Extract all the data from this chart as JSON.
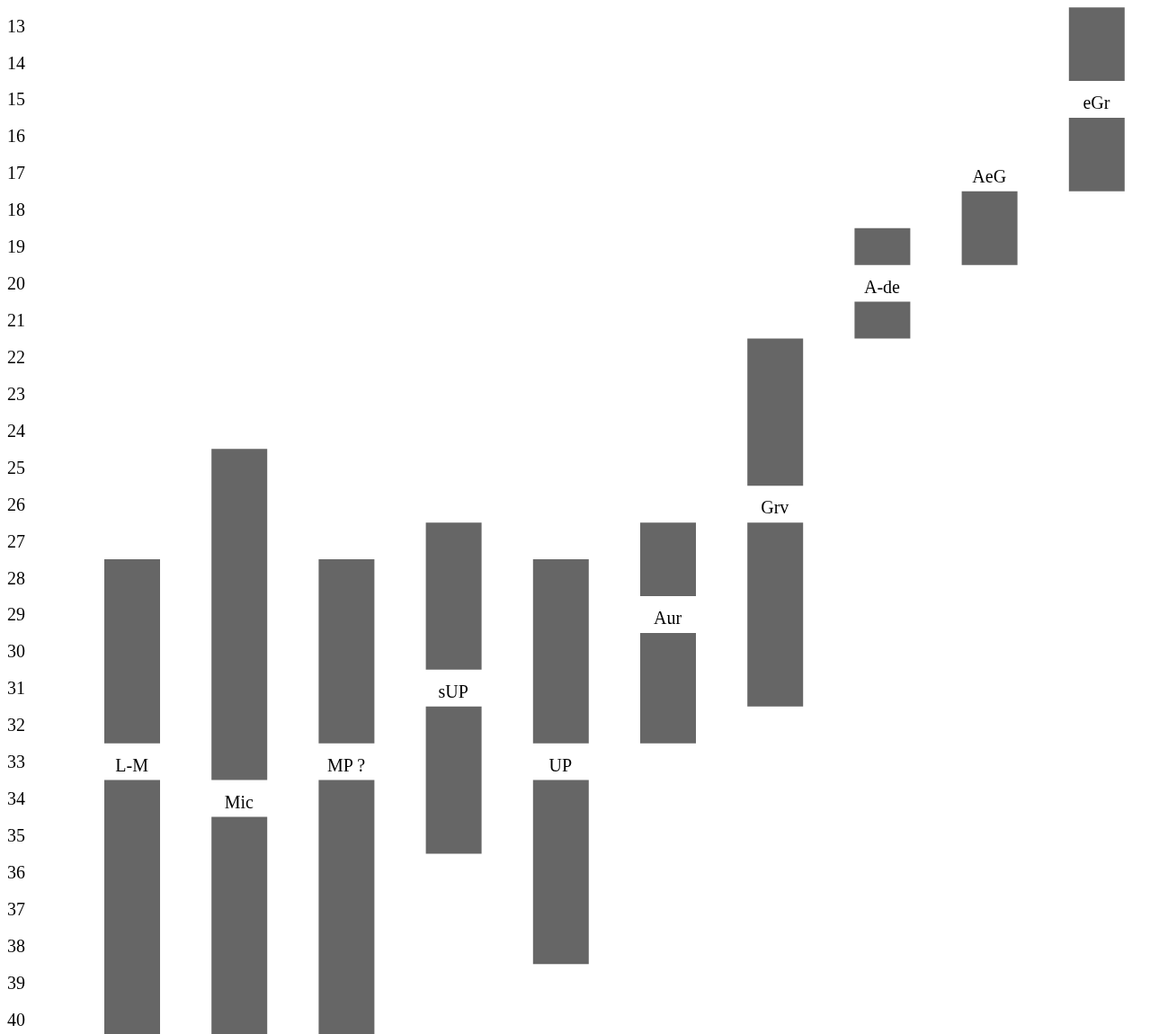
{
  "chart_data": {
    "type": "bar",
    "categories": [
      "L-M",
      "Mic",
      "MP ?",
      "sUP",
      "UP",
      "Aur",
      "Grv",
      "A-de",
      "AeG",
      "eGr"
    ],
    "series": [
      {
        "color": "#666666",
        "base": [
          27.5,
          24.5,
          27.5,
          26.5,
          27.5,
          26.5,
          21.5,
          18.5,
          null,
          12.5
        ],
        "values": [
          5,
          9,
          5,
          4,
          5,
          2,
          4,
          1,
          null,
          2
        ]
      },
      {
        "color": "#666666",
        "base": [
          33.5,
          34.5,
          33.5,
          31.5,
          33.5,
          29.5,
          26.5,
          20.5,
          17.5,
          15.5
        ],
        "values": [
          6.9,
          5.9,
          6.9,
          4,
          5,
          3,
          5,
          1,
          2,
          2
        ]
      }
    ],
    "ylim": [
      40.4,
      12.3
    ],
    "yticks": [
      13,
      14,
      15,
      16,
      17,
      18,
      19,
      20,
      21,
      22,
      23,
      24,
      25,
      26,
      27,
      28,
      29,
      30,
      31,
      32,
      33,
      34,
      35,
      36,
      37,
      38,
      39,
      40
    ],
    "grid": false,
    "legend": false
  }
}
